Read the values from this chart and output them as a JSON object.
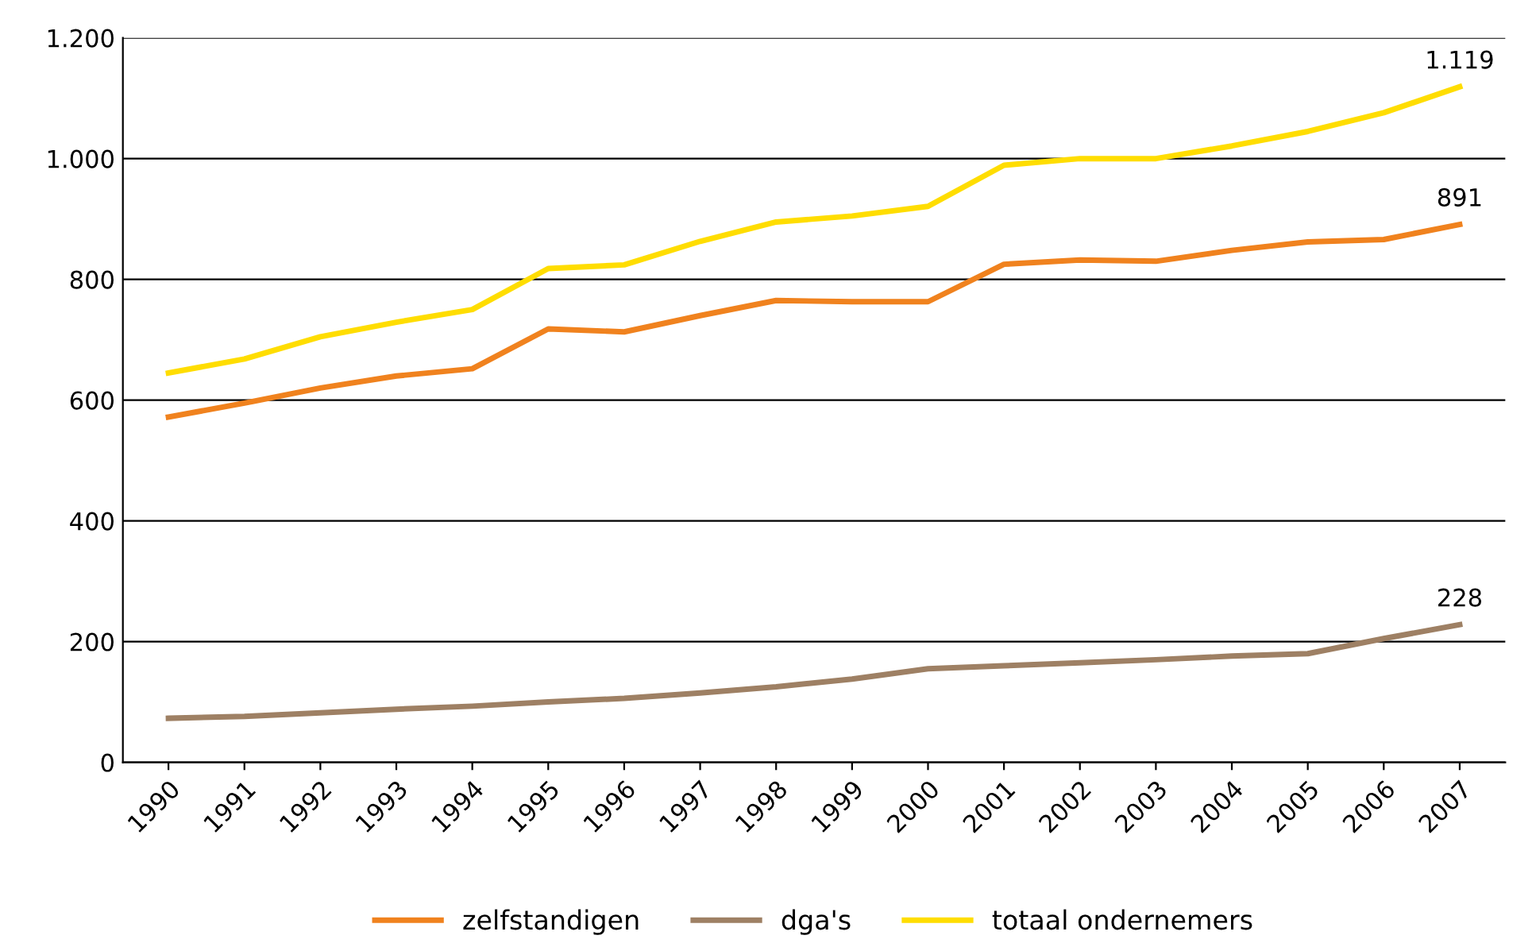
{
  "chart_data": {
    "type": "line",
    "categories": [
      "1990",
      "1991",
      "1992",
      "1993",
      "1994",
      "1995",
      "1996",
      "1997",
      "1998",
      "1999",
      "2000",
      "2001",
      "2002",
      "2003",
      "2004",
      "2005",
      "2006",
      "2007"
    ],
    "series": [
      {
        "name": "zelfstandigen",
        "color": "#f0821e",
        "values": [
          572,
          595,
          620,
          640,
          652,
          718,
          713,
          740,
          765,
          763,
          763,
          825,
          832,
          830,
          848,
          862,
          866,
          891
        ],
        "value_labels": [
          null,
          null,
          null,
          null,
          null,
          null,
          null,
          null,
          null,
          null,
          null,
          null,
          null,
          null,
          null,
          null,
          null,
          "891"
        ]
      },
      {
        "name": "dga's",
        "color": "#9e8064",
        "values": [
          73,
          76,
          82,
          88,
          93,
          100,
          106,
          115,
          125,
          138,
          155,
          160,
          165,
          170,
          176,
          180,
          205,
          228
        ],
        "value_labels": [
          null,
          null,
          null,
          null,
          null,
          null,
          null,
          null,
          null,
          null,
          null,
          null,
          null,
          null,
          null,
          null,
          null,
          "228"
        ]
      },
      {
        "name": "totaal ondernemers",
        "color": "#ffdd00",
        "values": [
          645,
          668,
          705,
          729,
          750,
          818,
          824,
          863,
          895,
          905,
          921,
          989,
          1000,
          1000,
          1021,
          1045,
          1076,
          1119
        ],
        "value_labels": [
          null,
          null,
          null,
          null,
          null,
          null,
          null,
          null,
          null,
          null,
          null,
          null,
          null,
          null,
          null,
          null,
          null,
          "1.119"
        ]
      }
    ],
    "ylim": [
      0,
      1200
    ],
    "yticks": [
      0,
      200,
      400,
      600,
      800,
      {
        "value": 1000,
        "label": "1.000"
      },
      {
        "value": 1200,
        "label": "1.200"
      }
    ],
    "grid": "y",
    "legend": "bottom",
    "marker": "none",
    "line_style": "solid"
  }
}
